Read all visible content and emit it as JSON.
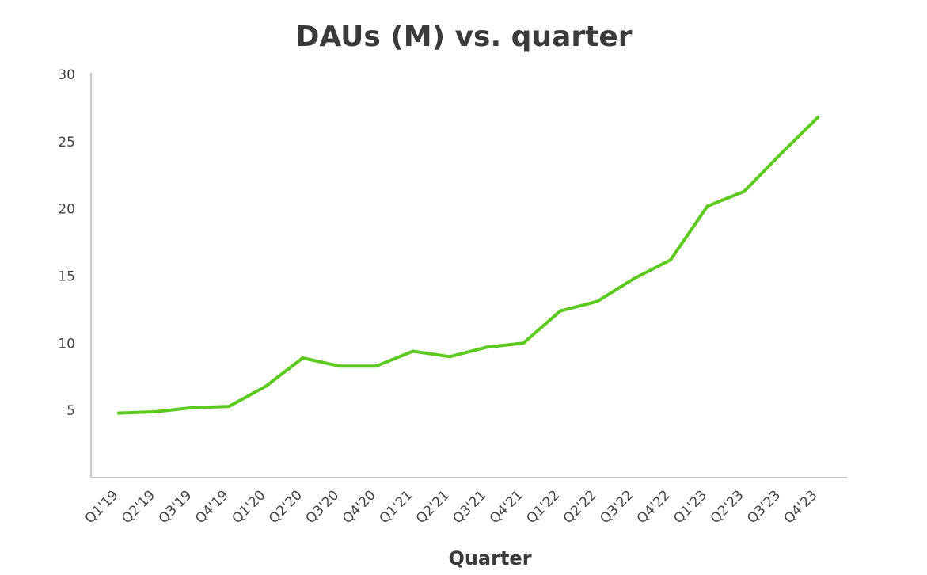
{
  "chart_data": {
    "type": "line",
    "title": "DAUs (M) vs. quarter",
    "xlabel": "Quarter",
    "ylabel": "",
    "categories": [
      "Q1'19",
      "Q2'19",
      "Q3'19",
      "Q4'19",
      "Q1'20",
      "Q2'20",
      "Q3'20",
      "Q4'20",
      "Q1'21",
      "Q2'21",
      "Q3'21",
      "Q4'21",
      "Q1'22",
      "Q2'22",
      "Q3'22",
      "Q4'22",
      "Q1'23",
      "Q2'23",
      "Q3'23",
      "Q4'23"
    ],
    "series": [
      {
        "name": "",
        "values": [
          4.8,
          4.9,
          5.2,
          5.3,
          6.8,
          8.9,
          8.3,
          8.3,
          9.4,
          9.0,
          9.7,
          10.0,
          12.4,
          13.1,
          14.8,
          16.2,
          20.2,
          21.3,
          24.1,
          26.8
        ]
      }
    ],
    "ylim": [
      0,
      30
    ],
    "yticks": [
      5,
      10,
      15,
      20,
      25,
      30
    ],
    "grid": false,
    "legend": "none",
    "colors": {
      "line": "#5cc91f",
      "axis": "#c8c8c8",
      "text": "#3a3a3a"
    }
  }
}
